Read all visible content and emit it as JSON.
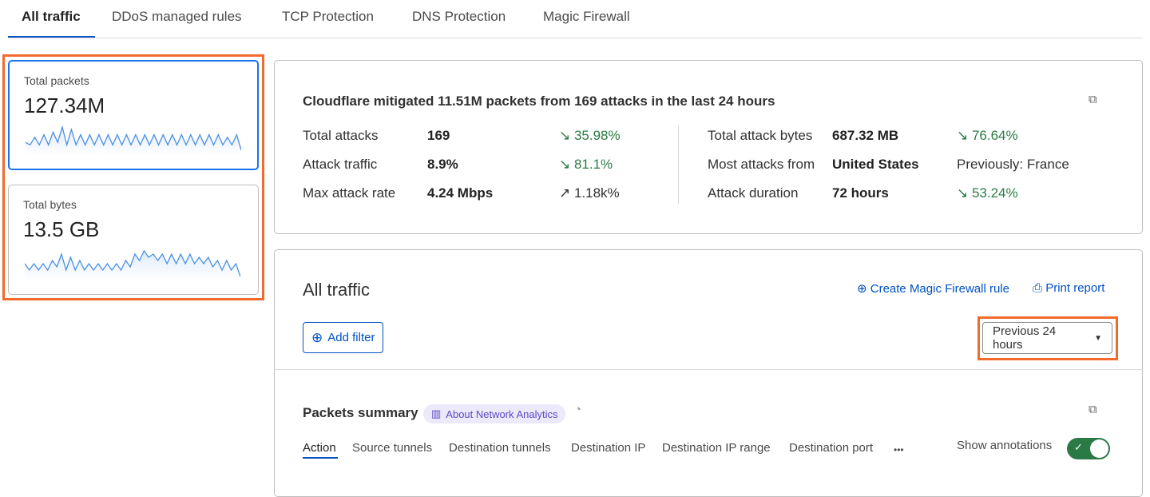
{
  "tabs": [
    "All traffic",
    "DDoS managed rules",
    "TCP Protection",
    "DNS Protection",
    "Magic Firewall"
  ],
  "metrics": [
    {
      "label": "Total packets",
      "value": "127.34M",
      "sparkline": [
        4,
        3,
        6,
        3,
        7,
        3,
        8,
        4,
        10,
        3,
        9,
        3,
        7,
        3,
        7,
        3,
        7,
        3,
        7,
        3,
        7,
        3,
        7,
        3,
        7,
        3,
        7,
        3,
        7,
        3,
        7,
        3,
        7,
        3,
        7,
        3,
        7,
        3,
        7,
        3,
        7,
        3,
        7,
        3,
        6,
        3,
        7,
        1
      ]
    },
    {
      "label": "Total bytes",
      "value": "13.5 GB",
      "sparkline": [
        4,
        2,
        4,
        2,
        4,
        2,
        5,
        3,
        7,
        2,
        6,
        2,
        5,
        2,
        4,
        2,
        4,
        2,
        4,
        2,
        4,
        2,
        5,
        3,
        7,
        5,
        8,
        6,
        7,
        5,
        7,
        4,
        7,
        4,
        7,
        4,
        7,
        4,
        6,
        4,
        6,
        3,
        5,
        2,
        5,
        2,
        4,
        0
      ]
    }
  ],
  "summary": {
    "title": "Cloudflare mitigated 11.51M packets from 169 attacks in the last 24 hours",
    "left": [
      {
        "label": "Total attacks",
        "value": "169",
        "change": "35.98%",
        "direction": "down"
      },
      {
        "label": "Attack traffic",
        "value": "8.9%",
        "change": "81.1%",
        "direction": "down"
      },
      {
        "label": "Max attack rate",
        "value": "4.24 Mbps",
        "change": "1.18k%",
        "direction": "up"
      }
    ],
    "right": [
      {
        "label": "Total attack bytes",
        "value": "687.32 MB",
        "change": "76.64%",
        "direction": "down"
      },
      {
        "label": "Most attacks from",
        "value": "United States",
        "change": "Previously: France",
        "direction": ""
      },
      {
        "label": "Attack duration",
        "value": "72 hours",
        "change": "53.24%",
        "direction": "down"
      }
    ]
  },
  "traffic": {
    "title": "All traffic",
    "create_rule": "Create Magic Firewall rule",
    "print": "Print report",
    "add_filter": "Add filter",
    "time_range": "Previous 24 hours"
  },
  "packets": {
    "title": "Packets summary",
    "about": "About Network Analytics",
    "subtabs": [
      "Action",
      "Source tunnels",
      "Destination tunnels",
      "Destination IP",
      "Destination IP range",
      "Destination port"
    ],
    "more": "•••",
    "show_annotations": "Show annotations",
    "annotations_on": true
  },
  "colors": {
    "accent": "#0051c3",
    "highlight": "#f26a2e",
    "positive": "#2a7a46"
  }
}
